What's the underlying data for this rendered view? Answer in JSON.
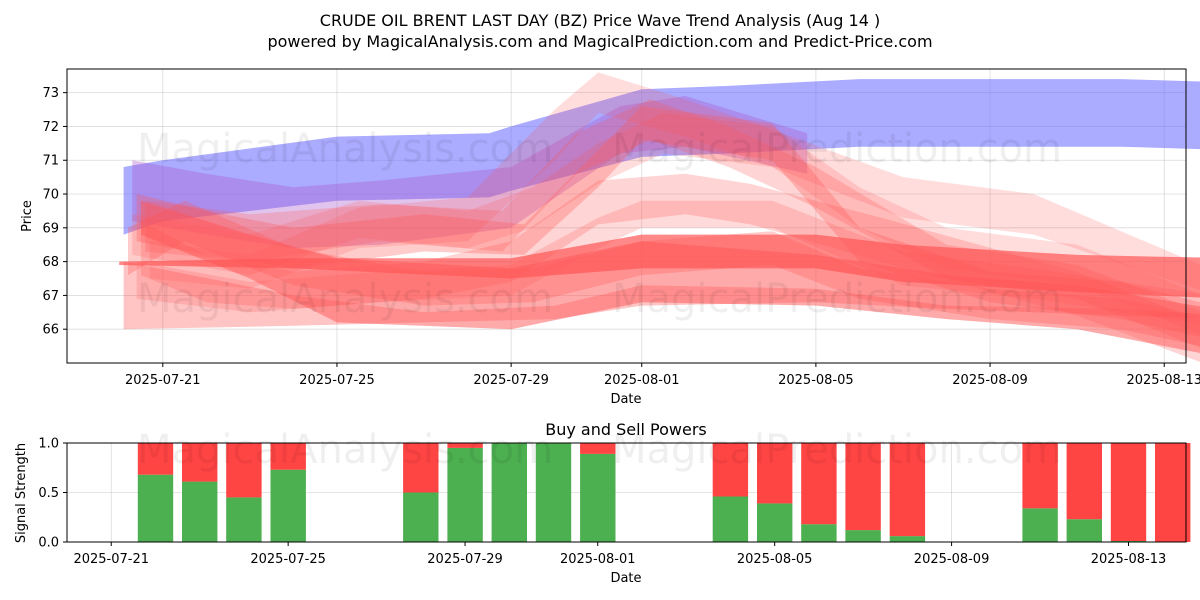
{
  "header": {
    "title": "CRUDE OIL BRENT LAST DAY (BZ) Price Wave Trend Analysis (Aug 14 )",
    "subtitle": "powered by MagicalAnalysis.com and MagicalPrediction.com and Predict-Price.com"
  },
  "watermarks": {
    "left": "MagicalAnalysis.com",
    "right": "MagicalPrediction.com"
  },
  "colors": {
    "trend_blue": "#6666ff",
    "trend_red": "#ff5555",
    "buy": "#4caf50",
    "sell": "#ff4444"
  },
  "chart_data": [
    {
      "type": "area",
      "title": "",
      "xlabel": "Date",
      "ylabel": "Price",
      "grid": true,
      "xlim": [
        -2.2,
        23.5
      ],
      "ylim": [
        65.0,
        73.7
      ],
      "x_origin_date": "2025-07-21",
      "xticks": [
        {
          "day": 0,
          "label": "2025-07-21"
        },
        {
          "day": 4,
          "label": "2025-07-25"
        },
        {
          "day": 8,
          "label": "2025-07-29"
        },
        {
          "day": 11,
          "label": "2025-08-01"
        },
        {
          "day": 15,
          "label": "2025-08-05"
        },
        {
          "day": 19,
          "label": "2025-08-09"
        },
        {
          "day": 23,
          "label": "2025-08-13"
        }
      ],
      "yticks": [
        66,
        67,
        68,
        69,
        70,
        71,
        72,
        73
      ],
      "series": [
        {
          "name": "blue upper band",
          "color": "#6666ff",
          "opacity": 0.55,
          "x": [
            -0.9,
            0,
            4,
            7.5,
            8,
            11,
            13,
            16,
            22,
            24.6
          ],
          "upper": [
            70.8,
            71.0,
            71.7,
            71.8,
            72.0,
            73.1,
            73.2,
            73.4,
            73.4,
            73.3
          ],
          "lower": [
            68.8,
            69.2,
            69.8,
            69.9,
            70.1,
            71.1,
            71.2,
            71.4,
            71.4,
            71.3
          ]
        },
        {
          "name": "purple wave",
          "color": "#aa55cc",
          "opacity": 0.35,
          "x": [
            -0.7,
            1,
            3,
            5,
            8,
            10.5,
            12,
            14.8
          ],
          "upper": [
            71.0,
            70.6,
            70.2,
            70.4,
            70.8,
            72.6,
            72.9,
            71.8
          ],
          "lower": [
            69.2,
            68.8,
            68.4,
            68.5,
            69.0,
            71.2,
            71.4,
            70.6
          ]
        },
        {
          "name": "red wave A",
          "color": "#ff5555",
          "opacity": 0.3,
          "x": [
            -0.6,
            1,
            3,
            6,
            8.3,
            10,
            11,
            14,
            16,
            19,
            22,
            24.4
          ],
          "upper": [
            70.0,
            69.5,
            69.0,
            69.4,
            69.1,
            71.3,
            72.6,
            72.1,
            69.0,
            67.7,
            67.4,
            66.6
          ],
          "lower": [
            68.6,
            68.2,
            67.8,
            68.3,
            68.2,
            70.2,
            71.6,
            71.0,
            68.0,
            66.8,
            66.3,
            65.6
          ]
        },
        {
          "name": "red wave B",
          "color": "#ff5555",
          "opacity": 0.25,
          "x": [
            -0.4,
            2,
            5,
            7.8,
            9.5,
            11.2,
            13,
            15,
            18,
            21,
            24.3
          ],
          "upper": [
            69.8,
            69.4,
            69.7,
            69.5,
            71.8,
            72.8,
            72.0,
            70.8,
            68.5,
            67.9,
            66.3
          ],
          "lower": [
            68.3,
            68.0,
            68.6,
            68.3,
            70.6,
            71.6,
            70.8,
            69.6,
            67.5,
            66.9,
            65.2
          ]
        },
        {
          "name": "red wave C",
          "color": "#ff5555",
          "opacity": 0.2,
          "x": [
            -0.3,
            2,
            4.5,
            7,
            9,
            10,
            12,
            14,
            17,
            20,
            24.2
          ],
          "upper": [
            68.6,
            68.2,
            69.6,
            69.9,
            72.5,
            73.6,
            72.8,
            71.9,
            70.5,
            70.0,
            67.7
          ],
          "lower": [
            67.5,
            67.2,
            68.4,
            68.6,
            71.0,
            72.4,
            71.7,
            70.8,
            69.3,
            68.8,
            67.0
          ]
        },
        {
          "name": "red wave D",
          "color": "#ff5555",
          "opacity": 0.25,
          "x": [
            -0.5,
            1,
            3,
            6,
            8,
            10,
            12,
            13.5,
            16.5,
            21,
            24.3
          ],
          "upper": [
            69.2,
            68.2,
            67.7,
            68.0,
            68.6,
            70.4,
            70.6,
            70.3,
            69.3,
            67.7,
            66.0
          ],
          "lower": [
            67.6,
            66.8,
            66.6,
            66.9,
            67.4,
            69.1,
            69.4,
            69.1,
            68.0,
            66.4,
            64.8
          ]
        },
        {
          "name": "red wave E",
          "color": "#ff5555",
          "opacity": 0.22,
          "x": [
            -0.6,
            2,
            5,
            8,
            10,
            11,
            14,
            17,
            20,
            24.1
          ],
          "upper": [
            68.0,
            67.4,
            67.7,
            67.9,
            69.3,
            69.8,
            69.8,
            68.3,
            67.8,
            67.0
          ],
          "lower": [
            66.9,
            66.5,
            66.8,
            67.0,
            68.4,
            69.0,
            69.0,
            67.3,
            66.9,
            66.1
          ]
        },
        {
          "name": "red wave F",
          "color": "#ff5555",
          "opacity": 0.3,
          "x": [
            -0.8,
            0.5,
            3,
            6,
            8.5,
            11,
            14,
            16,
            19,
            22,
            24.2
          ],
          "upper": [
            69.0,
            69.8,
            68.4,
            67.7,
            67.8,
            68.6,
            68.9,
            67.8,
            67.2,
            66.9,
            66.3
          ],
          "lower": [
            67.6,
            68.6,
            67.3,
            66.7,
            66.8,
            67.6,
            67.9,
            66.9,
            66.3,
            66.0,
            65.4
          ]
        },
        {
          "name": "red wave G",
          "color": "#ff5555",
          "opacity": 0.2,
          "x": [
            -0.7,
            2,
            4.5,
            7,
            8.5,
            10,
            11.5,
            14,
            16,
            18,
            21,
            24.3
          ],
          "upper": [
            69.4,
            68.8,
            69.8,
            69.5,
            70.2,
            71.5,
            72.4,
            72.0,
            70.2,
            69.0,
            68.5,
            66.8
          ],
          "lower": [
            68.2,
            67.6,
            68.7,
            68.4,
            69.0,
            70.3,
            71.2,
            70.8,
            69.0,
            67.8,
            67.3,
            65.6
          ]
        },
        {
          "name": "red main band",
          "color": "#ff5555",
          "opacity": 0.7,
          "x": [
            -1.0,
            3,
            8,
            11,
            15,
            17,
            21,
            24.5
          ],
          "upper": [
            68.0,
            68.1,
            68.1,
            68.8,
            68.8,
            68.5,
            68.2,
            68.1
          ],
          "lower": [
            67.9,
            67.8,
            67.5,
            67.8,
            67.8,
            67.4,
            67.1,
            66.9
          ]
        },
        {
          "name": "red lower band",
          "color": "#ff5555",
          "opacity": 0.35,
          "x": [
            -0.9,
            3,
            6,
            9,
            11,
            15,
            18,
            22,
            24.5
          ],
          "upper": [
            68.0,
            67.0,
            66.5,
            66.7,
            67.3,
            67.2,
            66.7,
            66.6,
            66.4
          ],
          "lower": [
            66.0,
            66.1,
            66.2,
            66.3,
            66.7,
            66.8,
            66.6,
            66.4,
            66.3
          ]
        },
        {
          "name": "red decline wave",
          "color": "#ff5555",
          "opacity": 0.5,
          "x": [
            -0.5,
            2,
            4,
            8,
            11,
            15,
            18,
            21,
            24.6
          ],
          "upper": [
            69.8,
            68.8,
            68.1,
            67.8,
            68.6,
            68.2,
            67.6,
            67.3,
            66.5
          ],
          "lower": [
            68.8,
            67.5,
            66.2,
            66.0,
            66.8,
            66.7,
            66.3,
            66.0,
            65.1
          ]
        }
      ]
    },
    {
      "type": "bar",
      "title": "Buy and Sell Powers",
      "xlabel": "Date",
      "ylabel": "Signal Strength",
      "ylim": [
        0,
        1.0
      ],
      "yticks": [
        0.0,
        0.5,
        1.0
      ],
      "xlim": [
        -1.0,
        24.3
      ],
      "xticks": [
        {
          "day": 0,
          "label": "2025-07-21"
        },
        {
          "day": 4,
          "label": "2025-07-25"
        },
        {
          "day": 8,
          "label": "2025-07-29"
        },
        {
          "day": 11,
          "label": "2025-08-01"
        },
        {
          "day": 15,
          "label": "2025-08-05"
        },
        {
          "day": 19,
          "label": "2025-08-09"
        },
        {
          "day": 23,
          "label": "2025-08-13"
        }
      ],
      "days": [
        1,
        2,
        3,
        4,
        7,
        8,
        9,
        10,
        11,
        14,
        15,
        16,
        17,
        18,
        21,
        22,
        23,
        24
      ],
      "series": [
        {
          "name": "Buy",
          "color": "#4caf50",
          "values": [
            0.68,
            0.61,
            0.45,
            0.73,
            0.5,
            0.95,
            1.0,
            1.0,
            0.89,
            0.46,
            0.39,
            0.18,
            0.12,
            0.06,
            0.34,
            0.23,
            0.01,
            0.0
          ]
        },
        {
          "name": "Sell",
          "color": "#ff4444",
          "values": [
            0.32,
            0.39,
            0.55,
            0.27,
            0.5,
            0.05,
            0.0,
            0.0,
            0.11,
            0.54,
            0.61,
            0.82,
            0.88,
            0.94,
            0.66,
            0.77,
            0.99,
            1.0
          ]
        }
      ]
    }
  ]
}
